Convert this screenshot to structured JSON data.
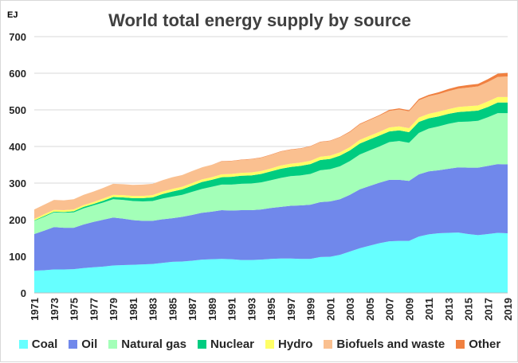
{
  "chart_data": {
    "type": "area",
    "stacked": true,
    "title": "World total energy supply by source",
    "ylabel": "EJ",
    "xlabel": "",
    "ylim": [
      0,
      700
    ],
    "yticks": [
      0,
      100,
      200,
      300,
      400,
      500,
      600,
      700
    ],
    "xticks": [
      "1971",
      "1973",
      "1975",
      "1977",
      "1979",
      "1981",
      "1983",
      "1985",
      "1987",
      "1989",
      "1991",
      "1993",
      "1995",
      "1997",
      "1999",
      "2001",
      "2003",
      "2005",
      "2007",
      "2009",
      "2011",
      "2013",
      "2015",
      "2017",
      "2019"
    ],
    "grid": true,
    "legend_position": "bottom",
    "x": [
      1971,
      1972,
      1973,
      1974,
      1975,
      1976,
      1977,
      1978,
      1979,
      1980,
      1981,
      1982,
      1983,
      1984,
      1985,
      1986,
      1987,
      1988,
      1989,
      1990,
      1991,
      1992,
      1993,
      1994,
      1995,
      1996,
      1997,
      1998,
      1999,
      2000,
      2001,
      2002,
      2003,
      2004,
      2005,
      2006,
      2007,
      2008,
      2009,
      2010,
      2011,
      2012,
      2013,
      2014,
      2015,
      2016,
      2017,
      2018,
      2019
    ],
    "series": [
      {
        "name": "Coal",
        "color": "#66ffff",
        "values": [
          61,
          62,
          64,
          64,
          65,
          68,
          70,
          72,
          75,
          76,
          77,
          78,
          79,
          82,
          85,
          86,
          88,
          91,
          92,
          93,
          92,
          90,
          90,
          91,
          93,
          94,
          94,
          93,
          93,
          98,
          99,
          104,
          113,
          122,
          129,
          136,
          141,
          142,
          142,
          154,
          160,
          163,
          164,
          165,
          161,
          158,
          161,
          164,
          163
        ]
      },
      {
        "name": "Oil",
        "color": "#7088eb",
        "values": [
          100,
          108,
          116,
          114,
          113,
          119,
          124,
          128,
          131,
          127,
          122,
          119,
          118,
          119,
          119,
          122,
          125,
          128,
          130,
          133,
          133,
          136,
          136,
          137,
          139,
          141,
          144,
          146,
          148,
          150,
          151,
          152,
          155,
          161,
          163,
          165,
          168,
          167,
          164,
          170,
          172,
          172,
          175,
          178,
          181,
          184,
          186,
          188,
          188
        ]
      },
      {
        "name": "Natural gas",
        "color": "#a3ffb8",
        "values": [
          36,
          38,
          40,
          41,
          42,
          44,
          45,
          47,
          50,
          51,
          52,
          53,
          54,
          57,
          59,
          60,
          63,
          65,
          68,
          70,
          71,
          72,
          73,
          74,
          76,
          79,
          81,
          82,
          84,
          87,
          88,
          90,
          92,
          95,
          97,
          99,
          103,
          106,
          104,
          113,
          117,
          120,
          123,
          124,
          126,
          128,
          133,
          139,
          140
        ]
      },
      {
        "name": "Nuclear",
        "color": "#00cc80",
        "values": [
          1,
          2,
          2,
          2,
          3,
          4,
          4,
          5,
          6,
          7,
          8,
          9,
          10,
          12,
          14,
          15,
          17,
          19,
          19,
          20,
          21,
          22,
          22,
          23,
          24,
          25,
          25,
          26,
          27,
          28,
          28,
          29,
          29,
          30,
          30,
          30,
          29,
          29,
          29,
          30,
          28,
          27,
          27,
          27,
          28,
          28,
          28,
          29,
          29
        ]
      },
      {
        "name": "Hydro",
        "color": "#ffff66",
        "values": [
          4,
          5,
          5,
          5,
          5,
          5,
          5,
          6,
          6,
          6,
          6,
          6,
          6,
          7,
          7,
          7,
          7,
          7,
          7,
          8,
          8,
          8,
          8,
          8,
          8,
          9,
          9,
          9,
          9,
          9,
          9,
          9,
          9,
          10,
          10,
          10,
          11,
          11,
          11,
          12,
          12,
          13,
          13,
          14,
          14,
          14,
          15,
          15,
          15
        ]
      },
      {
        "name": "Biofuels and waste",
        "color": "#fac090",
        "values": [
          26,
          26,
          27,
          27,
          28,
          28,
          29,
          29,
          30,
          30,
          30,
          31,
          31,
          31,
          32,
          32,
          33,
          33,
          34,
          35,
          35,
          35,
          36,
          36,
          37,
          38,
          38,
          38,
          39,
          40,
          40,
          41,
          41,
          42,
          43,
          44,
          45,
          46,
          46,
          47,
          48,
          48,
          49,
          50,
          51,
          52,
          53,
          55,
          56
        ]
      },
      {
        "name": "Other",
        "color": "#f08040",
        "values": [
          0,
          0,
          0,
          0,
          0,
          0,
          0,
          0,
          0,
          0,
          0,
          0,
          0,
          0,
          0,
          0,
          0,
          0,
          0,
          1,
          1,
          1,
          1,
          1,
          1,
          1,
          1,
          1,
          1,
          1,
          1,
          1,
          2,
          2,
          2,
          2,
          3,
          3,
          3,
          4,
          4,
          5,
          6,
          6,
          7,
          7,
          8,
          9,
          10
        ]
      }
    ]
  }
}
